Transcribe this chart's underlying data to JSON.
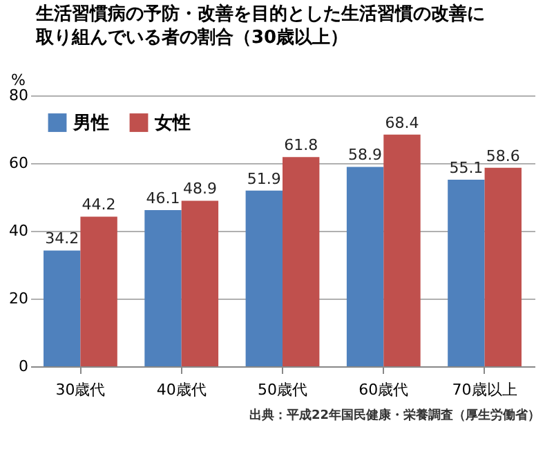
{
  "chart_data": {
    "type": "bar",
    "title": "生活習慣病の予防・改善を目的とした生活習慣の改善に取り組んでいる者の割合（30歳以上）",
    "ylabel": "%",
    "categories": [
      "30歳代",
      "40歳代",
      "50歳代",
      "60歳代",
      "70歳以上"
    ],
    "series": [
      {
        "name": "男性",
        "color": "#4f81bd",
        "values": [
          34.2,
          46.1,
          51.9,
          58.9,
          55.1
        ]
      },
      {
        "name": "女性",
        "color": "#c0504d",
        "values": [
          44.2,
          48.9,
          61.8,
          68.4,
          58.6
        ]
      }
    ],
    "ylim": [
      0,
      80
    ],
    "yticks": [
      0,
      20,
      40,
      60,
      80
    ],
    "grid": "y",
    "legend": "top left",
    "data_labels": true,
    "annotations": [
      "出典：平成22年国民健康・栄養調査（厚生労働省）"
    ]
  }
}
